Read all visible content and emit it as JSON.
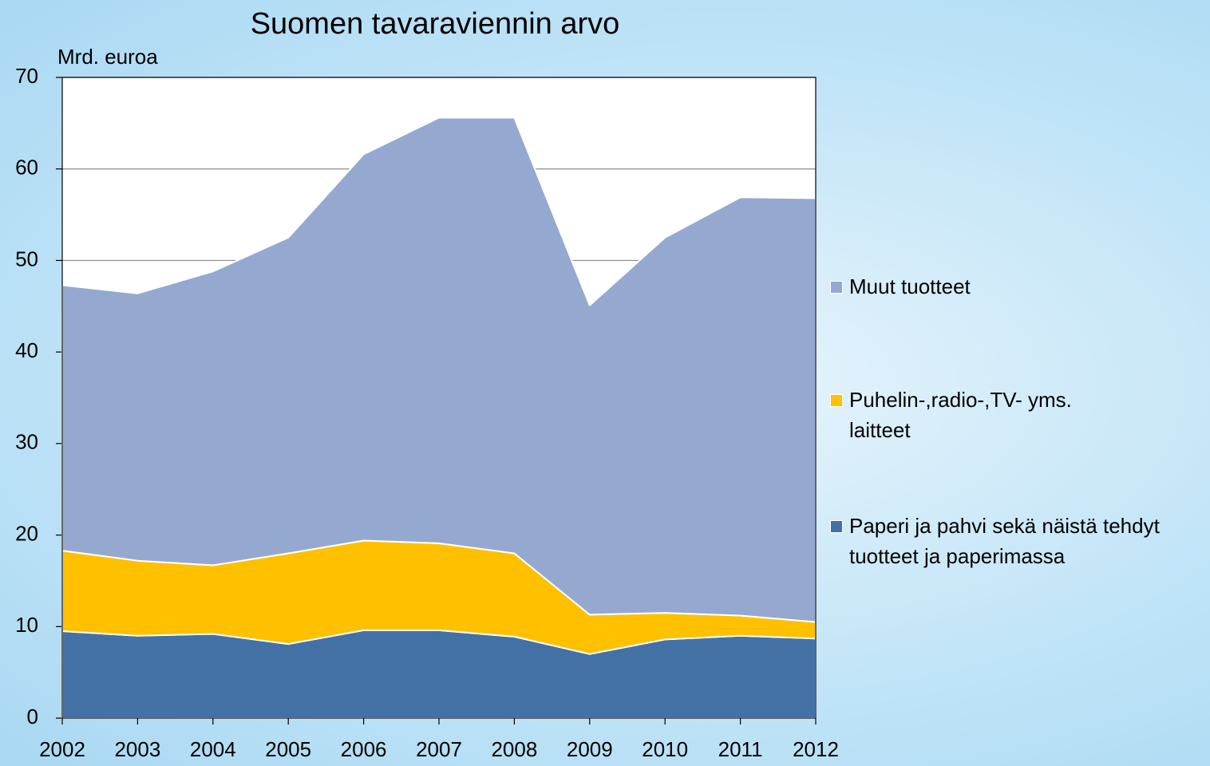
{
  "chart_data": {
    "type": "stacked_area",
    "title": "Suomen tavaraviennin arvo",
    "y_label": "Mrd. euroa",
    "categories": [
      "2002",
      "2003",
      "2004",
      "2005",
      "2006",
      "2007",
      "2008",
      "2009",
      "2010",
      "2011",
      "2012"
    ],
    "series": [
      {
        "name": "Paperi ja pahvi sekä näistä tehdyt tuotteet ja paperimassa",
        "color": "#4471a5",
        "values": [
          9.5,
          9.0,
          9.2,
          8.1,
          9.6,
          9.6,
          8.9,
          7.0,
          8.6,
          9.0,
          8.7
        ]
      },
      {
        "name": "Puhelin-,radio-,TV- yms. laitteet",
        "color": "#ffc000",
        "values": [
          8.8,
          8.2,
          7.5,
          9.9,
          9.8,
          9.5,
          9.1,
          4.3,
          2.9,
          2.2,
          1.8
        ]
      },
      {
        "name": "Muut tuotteet",
        "color": "#95a9d0",
        "values": [
          29.0,
          29.2,
          32.1,
          34.5,
          42.2,
          46.5,
          47.6,
          33.8,
          41.0,
          45.7,
          46.3
        ]
      }
    ],
    "ylim": [
      0,
      70
    ],
    "yticks": [
      0,
      10,
      20,
      30,
      40,
      50,
      60,
      70
    ],
    "grid": true,
    "legend": "right"
  }
}
